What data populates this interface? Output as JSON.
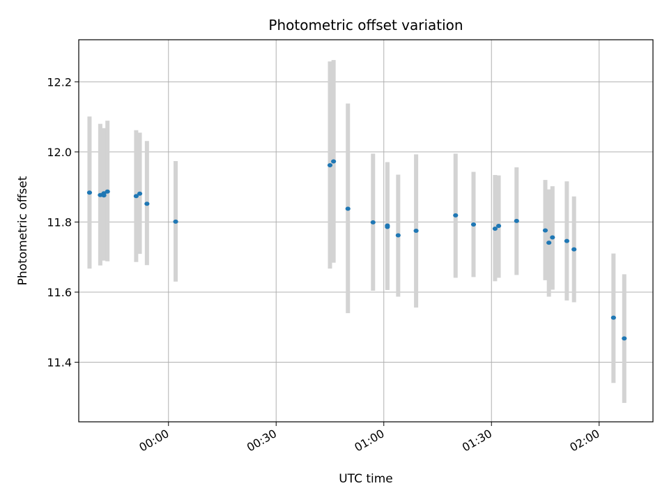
{
  "chart_data": {
    "type": "scatter",
    "title": "Photometric offset variation",
    "xlabel": "UTC time",
    "ylabel": "Photometric offset",
    "x_unit": "HH:MM UTC",
    "xlim": [
      "23:35",
      "02:15"
    ],
    "ylim": [
      11.23,
      12.32
    ],
    "grid": true,
    "xticks": [
      {
        "t": "00:00",
        "label": "00:00"
      },
      {
        "t": "00:30",
        "label": "00:30"
      },
      {
        "t": "01:00",
        "label": "01:00"
      },
      {
        "t": "01:30",
        "label": "01:30"
      },
      {
        "t": "02:00",
        "label": "02:00"
      }
    ],
    "yticks": [
      {
        "v": 11.4,
        "label": "11.4"
      },
      {
        "v": 11.6,
        "label": "11.6"
      },
      {
        "v": 11.8,
        "label": "11.8"
      },
      {
        "v": 12.0,
        "label": "12.0"
      },
      {
        "v": 12.2,
        "label": "12.2"
      }
    ],
    "colors": {
      "point": "#1f77b4",
      "errorbar": "#d3d3d3",
      "grid": "#b0b0b0"
    },
    "points": [
      {
        "t": "23:38",
        "y": 11.884,
        "lo": 11.667,
        "hi": 12.101
      },
      {
        "t": "23:41",
        "y": 11.877,
        "lo": 11.676,
        "hi": 12.08
      },
      {
        "t": "23:42",
        "y": 11.882,
        "lo": 11.692,
        "hi": 12.068
      },
      {
        "t": "23:42",
        "y": 11.876,
        "lo": 11.69,
        "hi": 12.065
      },
      {
        "t": "23:43",
        "y": 11.887,
        "lo": 11.688,
        "hi": 12.089
      },
      {
        "t": "23:51",
        "y": 11.874,
        "lo": 11.686,
        "hi": 12.062
      },
      {
        "t": "23:52",
        "y": 11.881,
        "lo": 11.709,
        "hi": 12.055
      },
      {
        "t": "23:54",
        "y": 11.852,
        "lo": 11.677,
        "hi": 12.031
      },
      {
        "t": "00:02",
        "y": 11.801,
        "lo": 11.63,
        "hi": 11.974
      },
      {
        "t": "00:45",
        "y": 11.962,
        "lo": 11.667,
        "hi": 12.258
      },
      {
        "t": "00:46",
        "y": 11.973,
        "lo": 11.684,
        "hi": 12.262
      },
      {
        "t": "00:50",
        "y": 11.838,
        "lo": 11.54,
        "hi": 12.138
      },
      {
        "t": "00:57",
        "y": 11.799,
        "lo": 11.604,
        "hi": 11.995
      },
      {
        "t": "01:01",
        "y": 11.786,
        "lo": 11.606,
        "hi": 11.97
      },
      {
        "t": "01:01",
        "y": 11.79,
        "lo": 11.609,
        "hi": 11.971
      },
      {
        "t": "01:04",
        "y": 11.762,
        "lo": 11.587,
        "hi": 11.935
      },
      {
        "t": "01:09",
        "y": 11.775,
        "lo": 11.556,
        "hi": 11.993
      },
      {
        "t": "01:20",
        "y": 11.819,
        "lo": 11.641,
        "hi": 11.995
      },
      {
        "t": "01:25",
        "y": 11.793,
        "lo": 11.643,
        "hi": 11.943
      },
      {
        "t": "01:31",
        "y": 11.781,
        "lo": 11.631,
        "hi": 11.934
      },
      {
        "t": "01:32",
        "y": 11.789,
        "lo": 11.641,
        "hi": 11.933
      },
      {
        "t": "01:37",
        "y": 11.803,
        "lo": 11.649,
        "hi": 11.956
      },
      {
        "t": "01:45",
        "y": 11.776,
        "lo": 11.634,
        "hi": 11.92
      },
      {
        "t": "01:46",
        "y": 11.741,
        "lo": 11.587,
        "hi": 11.893
      },
      {
        "t": "01:47",
        "y": 11.756,
        "lo": 11.607,
        "hi": 11.902
      },
      {
        "t": "01:51",
        "y": 11.746,
        "lo": 11.576,
        "hi": 11.916
      },
      {
        "t": "01:53",
        "y": 11.722,
        "lo": 11.571,
        "hi": 11.873
      },
      {
        "t": "02:04",
        "y": 11.527,
        "lo": 11.341,
        "hi": 11.71
      },
      {
        "t": "02:07",
        "y": 11.468,
        "lo": 11.284,
        "hi": 11.651
      }
    ]
  }
}
